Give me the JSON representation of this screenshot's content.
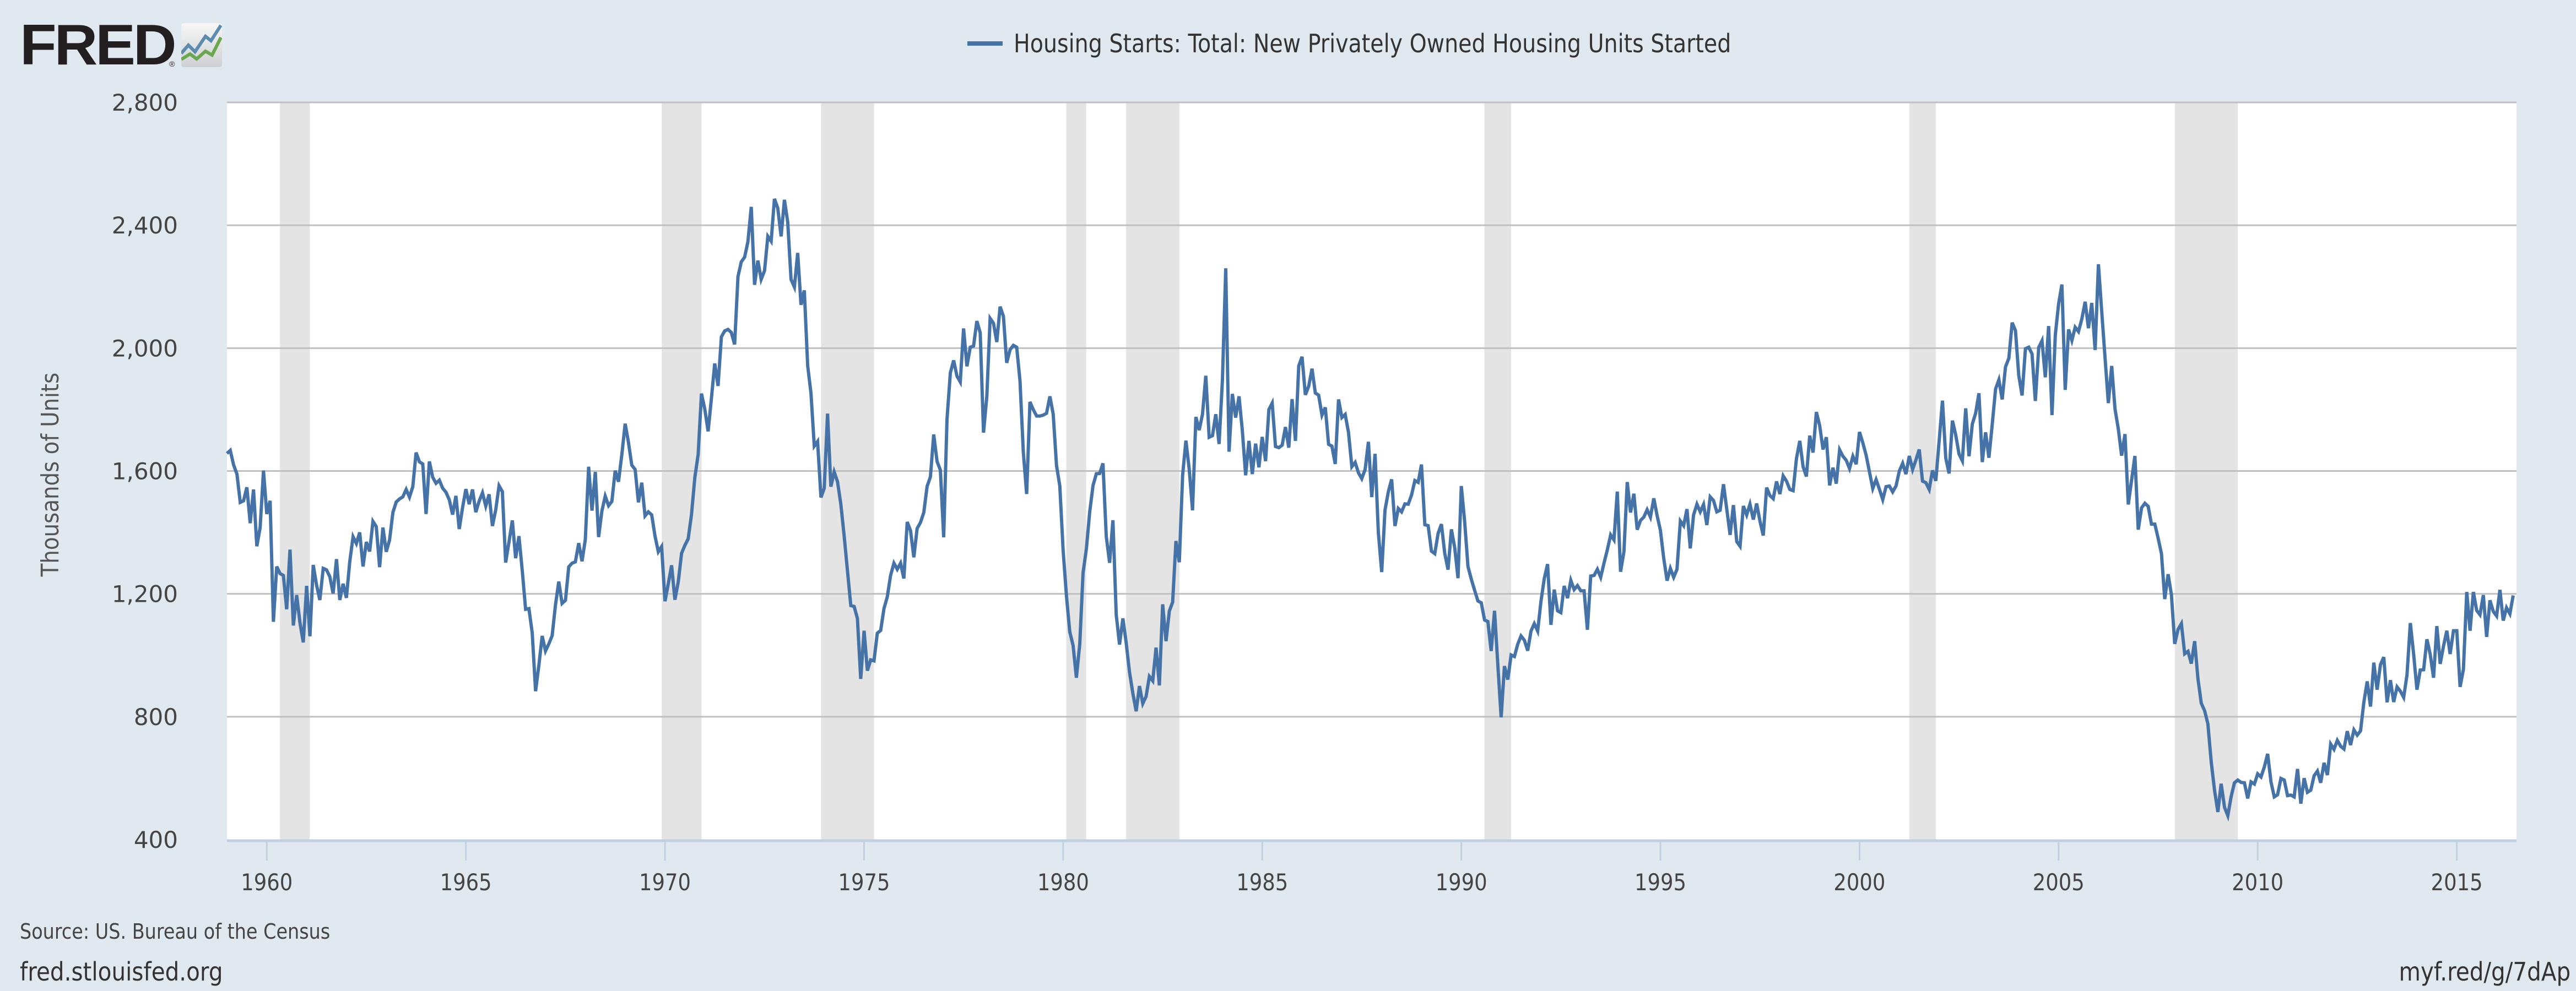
{
  "brand": {
    "logo_text": "FRED",
    "registered_mark": "®"
  },
  "footer": {
    "source": "Source: US. Bureau of the Census",
    "site": "fred.stlouisfed.org",
    "short_link": "myf.red/g/7dAp"
  },
  "colors": {
    "series": "#4572a7",
    "recession": "#e4e4e4",
    "grid": "#c0c0c0",
    "background": "#e1e9f0",
    "plot": "#ffffff"
  },
  "chart_data": {
    "type": "line",
    "title": "",
    "legend": [
      {
        "name": "Housing Starts: Total: New Privately Owned Housing Units Started",
        "color": "#4572a7"
      }
    ],
    "legend_position": "top-center",
    "xlabel": "",
    "ylabel": "Thousands of Units",
    "xlim": [
      1959.0,
      2016.5
    ],
    "ylim": [
      400,
      2800
    ],
    "yticks": [
      400,
      800,
      1200,
      1600,
      2000,
      2400,
      2800
    ],
    "ytick_labels": [
      "400",
      "800",
      "1,200",
      "1,600",
      "2,000",
      "2,400",
      "2,800"
    ],
    "xticks": [
      1960,
      1965,
      1970,
      1975,
      1980,
      1985,
      1990,
      1995,
      2000,
      2005,
      2010,
      2015
    ],
    "xtick_labels": [
      "1960",
      "1965",
      "1970",
      "1975",
      "1980",
      "1985",
      "1990",
      "1995",
      "2000",
      "2005",
      "2010",
      "2015"
    ],
    "grid": "horizontal",
    "recessions": [
      [
        1960.33,
        1961.08
      ],
      [
        1969.92,
        1970.92
      ],
      [
        1973.92,
        1975.25
      ],
      [
        1980.08,
        1980.58
      ],
      [
        1981.58,
        1982.92
      ],
      [
        1990.58,
        1991.25
      ],
      [
        2001.25,
        2001.92
      ],
      [
        2007.92,
        2009.5
      ]
    ],
    "series": [
      {
        "name": "Housing Starts: Total: New Privately Owned Housing Units Started",
        "units": "Thousands of Units",
        "frequency": "monthly",
        "start": "1959-01",
        "values_by_year": {
          "1959": [
            1657,
            1667,
            1620,
            1590,
            1498,
            1503,
            1547,
            1430,
            1540,
            1355,
            1416,
            1601
          ],
          "1960": [
            1460,
            1503,
            1109,
            1289,
            1266,
            1260,
            1150,
            1344,
            1097,
            1196,
            1106,
            1042
          ],
          "1961": [
            1226,
            1062,
            1294,
            1229,
            1180,
            1283,
            1278,
            1256,
            1201,
            1313,
            1180,
            1233
          ],
          "1962": [
            1187,
            1305,
            1386,
            1364,
            1400,
            1289,
            1369,
            1338,
            1436,
            1419,
            1287,
            1416
          ],
          "1963": [
            1337,
            1375,
            1465,
            1499,
            1509,
            1516,
            1540,
            1515,
            1549,
            1660,
            1630,
            1623
          ],
          "1964": [
            1460,
            1631,
            1580,
            1560,
            1570,
            1544,
            1531,
            1506,
            1458,
            1519,
            1411,
            1480
          ],
          "1965": [
            1541,
            1492,
            1540,
            1466,
            1502,
            1529,
            1486,
            1524,
            1421,
            1474,
            1552,
            1533
          ],
          "1966": [
            1302,
            1370,
            1439,
            1316,
            1388,
            1274,
            1150,
            1152,
            1073,
            883,
            968,
            1063
          ],
          "1967": [
            1014,
            1037,
            1064,
            1164,
            1240,
            1169,
            1179,
            1288,
            1300,
            1304,
            1365,
            1306
          ],
          "1968": [
            1377,
            1614,
            1471,
            1597,
            1385,
            1470,
            1518,
            1487,
            1501,
            1601,
            1565,
            1654
          ],
          "1969": [
            1754,
            1693,
            1619,
            1605,
            1498,
            1562,
            1454,
            1467,
            1457,
            1388,
            1337,
            1354
          ],
          "1970": [
            1176,
            1233,
            1293,
            1181,
            1239,
            1332,
            1358,
            1379,
            1458,
            1579,
            1654,
            1852
          ],
          "1971": [
            1802,
            1729,
            1837,
            1950,
            1877,
            2037,
            2056,
            2061,
            2051,
            2012,
            2233,
            2281
          ],
          "1972": [
            2296,
            2346,
            2460,
            2206,
            2285,
            2224,
            2252,
            2364,
            2348,
            2486,
            2456,
            2364
          ],
          "1973": [
            2483,
            2410,
            2224,
            2199,
            2310,
            2141,
            2188,
            1943,
            1853,
            1681,
            1696,
            1514
          ],
          "1974": [
            1544,
            1787,
            1549,
            1597,
            1565,
            1492,
            1389,
            1276,
            1162,
            1159,
            1120,
            923
          ],
          "1975": [
            1080,
            950,
            985,
            982,
            1072,
            1081,
            1152,
            1190,
            1260,
            1300,
            1280,
            1300
          ],
          "1976": [
            1250,
            1434,
            1406,
            1319,
            1413,
            1432,
            1465,
            1550,
            1581,
            1719,
            1631,
            1603
          ],
          "1977": [
            1384,
            1768,
            1920,
            1960,
            1909,
            1890,
            2064,
            1941,
            2003,
            2007,
            2088,
            2050
          ],
          "1978": [
            1725,
            1843,
            2097,
            2081,
            2020,
            2135,
            2104,
            1952,
            1995,
            2009,
            2003,
            1894
          ],
          "1979": [
            1660,
            1525,
            1825,
            1800,
            1779,
            1779,
            1782,
            1788,
            1843,
            1785,
            1618,
            1551
          ],
          "1980": [
            1342,
            1192,
            1076,
            1032,
            927,
            1037,
            1269,
            1346,
            1466,
            1553,
            1591,
            1592
          ],
          "1981": [
            1625,
            1387,
            1301,
            1440,
            1132,
            1035,
            1120,
            1040,
            945,
            877,
            818,
            900
          ],
          "1982": [
            843,
            866,
            931,
            917,
            1025,
            902,
            1166,
            1046,
            1144,
            1173,
            1372,
            1303
          ],
          "1983": [
            1586,
            1699,
            1606,
            1472,
            1776,
            1733,
            1785,
            1910,
            1710,
            1715,
            1785,
            1688
          ],
          "1984": [
            1897,
            2260,
            1663,
            1851,
            1774,
            1843,
            1732,
            1586,
            1698,
            1590,
            1689,
            1612
          ],
          "1985": [
            1711,
            1632,
            1800,
            1821,
            1680,
            1676,
            1684,
            1743,
            1676,
            1834,
            1698,
            1942
          ],
          "1986": [
            1972,
            1848,
            1876,
            1933,
            1854,
            1847,
            1782,
            1807,
            1687,
            1681,
            1623,
            1833
          ],
          "1987": [
            1774,
            1784,
            1726,
            1614,
            1628,
            1594,
            1575,
            1605,
            1695,
            1515,
            1656,
            1400
          ],
          "1988": [
            1271,
            1473,
            1532,
            1573,
            1421,
            1478,
            1467,
            1493,
            1492,
            1522,
            1569,
            1563
          ],
          "1989": [
            1621,
            1425,
            1422,
            1339,
            1331,
            1397,
            1427,
            1332,
            1279,
            1410,
            1351,
            1251
          ],
          "1990": [
            1551,
            1437,
            1289,
            1248,
            1212,
            1177,
            1171,
            1115,
            1110,
            1014,
            1145,
            969
          ],
          "1991": [
            798,
            965,
            921,
            1001,
            996,
            1036,
            1063,
            1049,
            1015,
            1079,
            1103,
            1079
          ],
          "1992": [
            1176,
            1250,
            1297,
            1099,
            1214,
            1145,
            1139,
            1226,
            1186,
            1244,
            1214,
            1227
          ],
          "1993": [
            1210,
            1210,
            1083,
            1258,
            1260,
            1280,
            1254,
            1300,
            1343,
            1392,
            1376,
            1533
          ],
          "1994": [
            1272,
            1337,
            1564,
            1465,
            1526,
            1409,
            1439,
            1450,
            1474,
            1450,
            1511,
            1455
          ],
          "1995": [
            1407,
            1316,
            1243,
            1283,
            1254,
            1280,
            1437,
            1422,
            1476,
            1348,
            1457,
            1492
          ],
          "1996": [
            1467,
            1491,
            1424,
            1516,
            1504,
            1467,
            1472,
            1557,
            1475,
            1392,
            1489,
            1370
          ],
          "1997": [
            1355,
            1486,
            1457,
            1492,
            1442,
            1494,
            1437,
            1390,
            1546,
            1520,
            1510,
            1566
          ],
          "1998": [
            1525,
            1584,
            1567,
            1540,
            1536,
            1641,
            1698,
            1614,
            1582,
            1715,
            1660,
            1792
          ],
          "1999": [
            1748,
            1670,
            1710,
            1553,
            1611,
            1559,
            1669,
            1648,
            1635,
            1608,
            1648,
            1622
          ],
          "2000": [
            1727,
            1692,
            1651,
            1597,
            1543,
            1572,
            1541,
            1507,
            1549,
            1551,
            1532,
            1551
          ],
          "2001": [
            1600,
            1625,
            1590,
            1649,
            1605,
            1636,
            1670,
            1567,
            1562,
            1540,
            1602,
            1568
          ],
          "2002": [
            1698,
            1829,
            1642,
            1592,
            1764,
            1717,
            1655,
            1633,
            1804,
            1648,
            1753,
            1788
          ],
          "2003": [
            1853,
            1629,
            1726,
            1643,
            1751,
            1867,
            1897,
            1833,
            1939,
            1967,
            2083,
            2057
          ],
          "2004": [
            1911,
            1846,
            1998,
            2003,
            1981,
            1828,
            2002,
            2024,
            1905,
            2072,
            1782,
            2042
          ],
          "2005": [
            2144,
            2207,
            1864,
            2061,
            2025,
            2068,
            2054,
            2095,
            2151,
            2065,
            2147,
            1994
          ],
          "2006": [
            2273,
            2119,
            1969,
            1821,
            1942,
            1802,
            1737,
            1650,
            1720,
            1491,
            1570,
            1649
          ],
          "2007": [
            1409,
            1480,
            1495,
            1485,
            1427,
            1427,
            1381,
            1331,
            1183,
            1264,
            1197,
            1037
          ],
          "2008": [
            1084,
            1103,
            1005,
            1013,
            973,
            1046,
            923,
            844,
            820,
            777,
            652,
            560
          ],
          "2009": [
            490,
            582,
            505,
            478,
            540,
            585,
            594,
            586,
            585,
            534,
            588,
            581
          ],
          "2010": [
            614,
            604,
            636,
            679,
            588,
            539,
            546,
            599,
            594,
            543,
            545,
            539
          ],
          "2011": [
            630,
            517,
            600,
            554,
            561,
            608,
            623,
            585,
            650,
            610,
            711,
            694
          ],
          "2012": [
            723,
            704,
            695,
            753,
            708,
            757,
            740,
            754,
            847,
            915,
            833,
            976
          ],
          "2013": [
            888,
            969,
            994,
            847,
            919,
            848,
            897,
            883,
            863,
            936,
            1105,
            1003
          ],
          "2014": [
            888,
            952,
            953,
            1052,
            1003,
            927,
            1095,
            972,
            1030,
            1080,
            1004,
            1080
          ],
          "2015": [
            1080,
            897,
            954,
            1206,
            1080,
            1206,
            1146,
            1132,
            1196,
            1060,
            1179,
            1143
          ],
          "2016": [
            1128,
            1213,
            1113,
            1155,
            1135,
            1195
          ]
        }
      }
    ]
  }
}
